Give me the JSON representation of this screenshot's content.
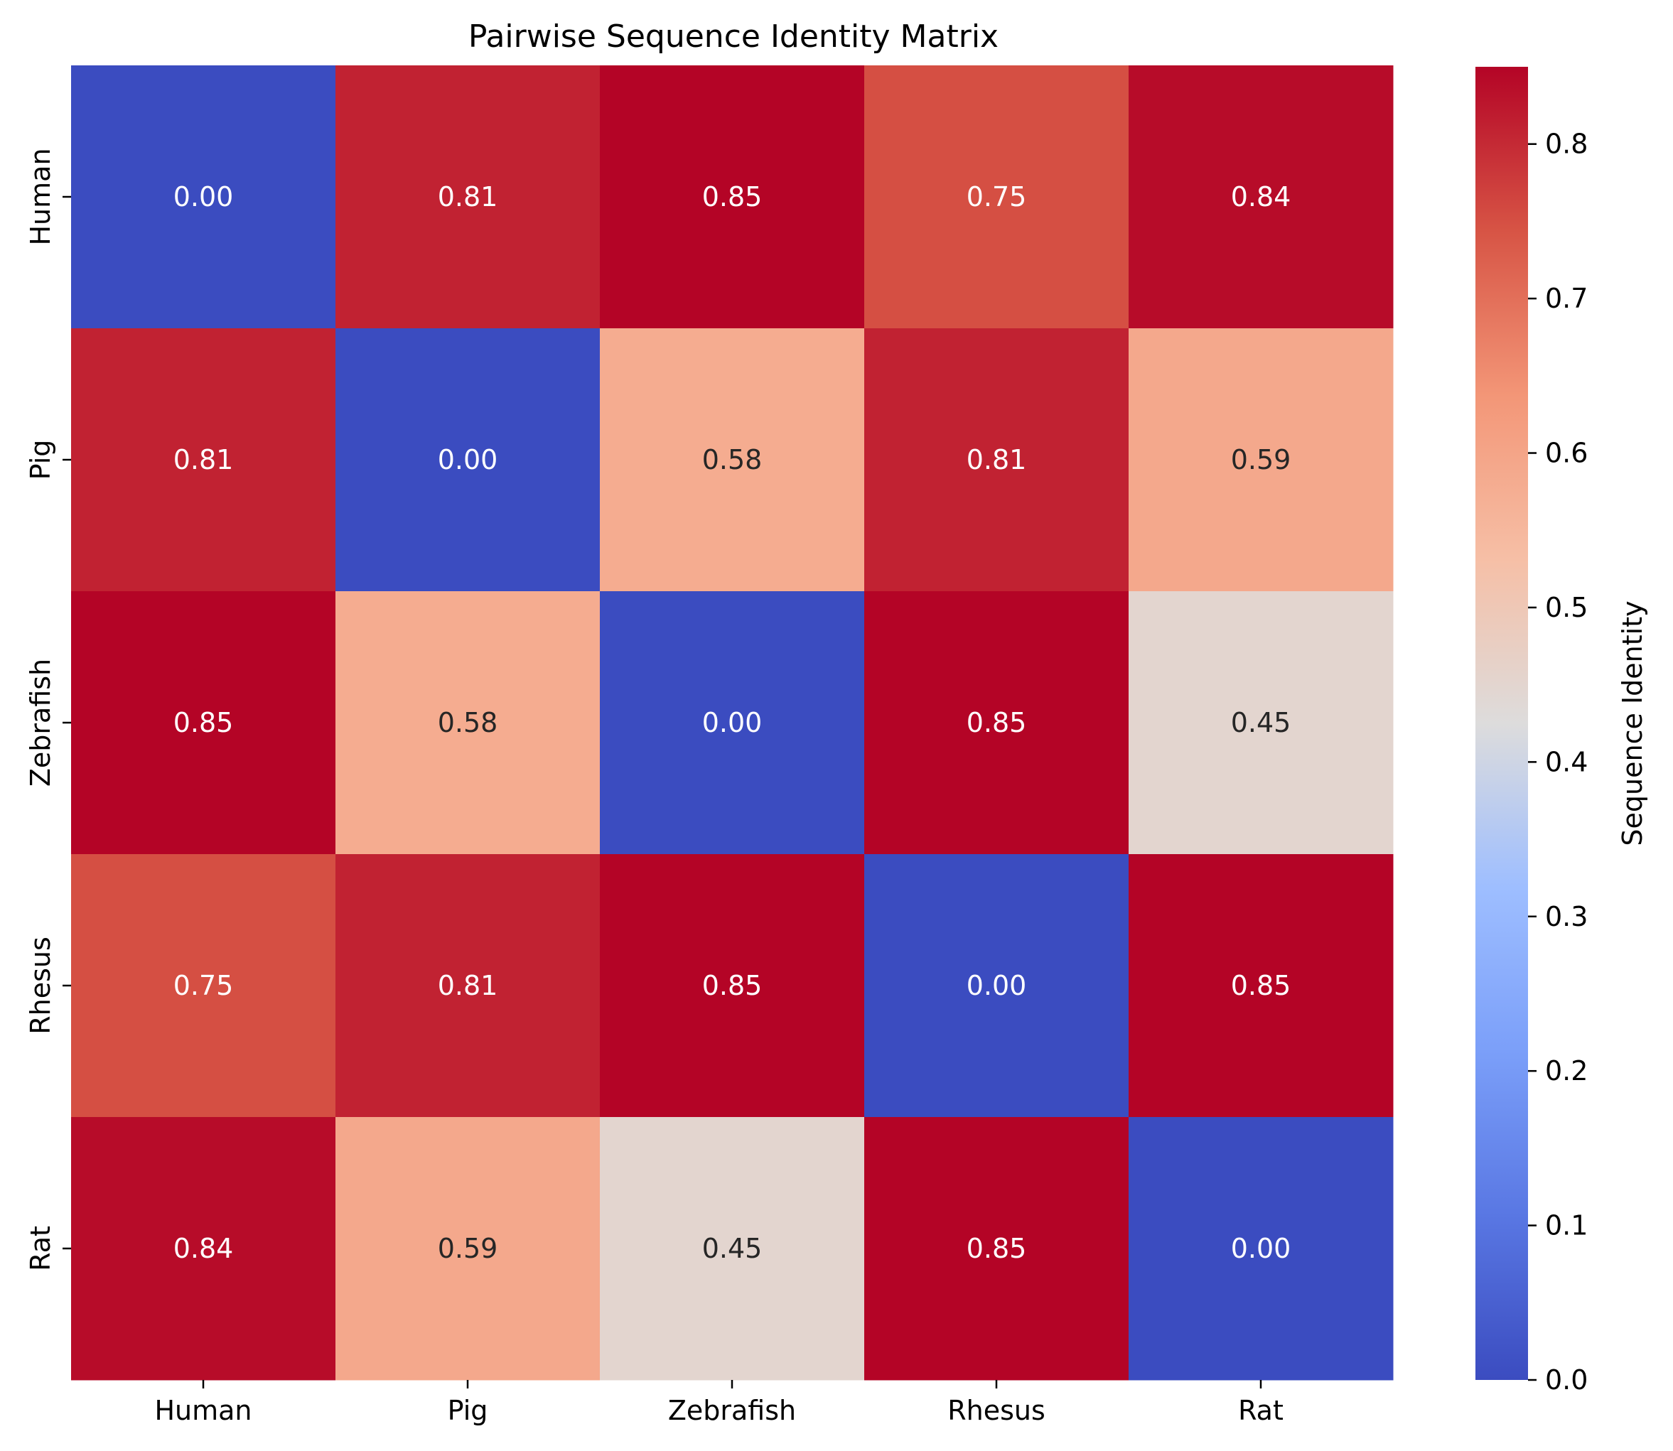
{
  "chart_data": {
    "type": "heatmap",
    "title": "Pairwise Sequence Identity Matrix",
    "x_categories": [
      "Human",
      "Pig",
      "Zebrafish",
      "Rhesus",
      "Rat"
    ],
    "y_categories": [
      "Human",
      "Pig",
      "Zebrafish",
      "Rhesus",
      "Rat"
    ],
    "values": [
      [
        0.0,
        0.81,
        0.85,
        0.75,
        0.84
      ],
      [
        0.81,
        0.0,
        0.58,
        0.81,
        0.59
      ],
      [
        0.85,
        0.58,
        0.0,
        0.85,
        0.45
      ],
      [
        0.75,
        0.81,
        0.85,
        0.0,
        0.85
      ],
      [
        0.84,
        0.59,
        0.45,
        0.85,
        0.0
      ]
    ],
    "value_format": "0.00",
    "colormap": "coolwarm",
    "colorbar": {
      "label": "Sequence Identity",
      "range": [
        0.0,
        0.85
      ],
      "ticks": [
        "0.0",
        "0.1",
        "0.2",
        "0.3",
        "0.4",
        "0.5",
        "0.6",
        "0.7",
        "0.8"
      ],
      "tick_values": [
        0.0,
        0.1,
        0.2,
        0.3,
        0.4,
        0.5,
        0.6,
        0.7,
        0.8
      ]
    },
    "grid": false,
    "legend": "colorbar-right"
  }
}
